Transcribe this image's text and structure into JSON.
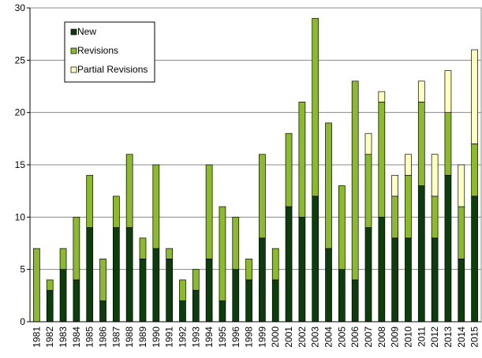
{
  "chart_data": {
    "type": "stacked_bar",
    "categories": [
      "1981",
      "1982",
      "1983",
      "1984",
      "1985",
      "1986",
      "1987",
      "1988",
      "1989",
      "1990",
      "1991",
      "1992",
      "1993",
      "1994",
      "1995",
      "1996",
      "1998",
      "1999",
      "2000",
      "2001",
      "2002",
      "2003",
      "2004",
      "2005",
      "2006",
      "2007",
      "2008",
      "2009",
      "2010",
      "2011",
      "2012",
      "2013",
      "2014",
      "2015"
    ],
    "series": [
      {
        "name": "New",
        "color": "#0d3d0d",
        "values": [
          0,
          3,
          5,
          4,
          9,
          2,
          9,
          9,
          6,
          7,
          6,
          2,
          3,
          6,
          2,
          5,
          4,
          8,
          4,
          11,
          10,
          12,
          7,
          5,
          4,
          9,
          10,
          8,
          8,
          13,
          8,
          14,
          6,
          12
        ]
      },
      {
        "name": "Revisions",
        "color": "#8db92e",
        "values": [
          7,
          1,
          2,
          6,
          5,
          4,
          3,
          7,
          2,
          8,
          1,
          2,
          2,
          9,
          9,
          5,
          2,
          8,
          3,
          7,
          11,
          17,
          12,
          8,
          19,
          7,
          11,
          4,
          6,
          8,
          4,
          6,
          5,
          5
        ]
      },
      {
        "name": "Partial Revisions",
        "color": "#ffffc0",
        "values": [
          0,
          0,
          0,
          0,
          0,
          0,
          0,
          0,
          0,
          0,
          0,
          0,
          0,
          0,
          0,
          0,
          0,
          0,
          0,
          0,
          0,
          0,
          0,
          0,
          0,
          2,
          1,
          2,
          2,
          2,
          4,
          4,
          4,
          9
        ]
      }
    ],
    "ylim": [
      0,
      30
    ],
    "yticks": [
      0,
      5,
      10,
      15,
      20,
      25,
      30
    ],
    "grid": true,
    "legend": "upper left"
  }
}
